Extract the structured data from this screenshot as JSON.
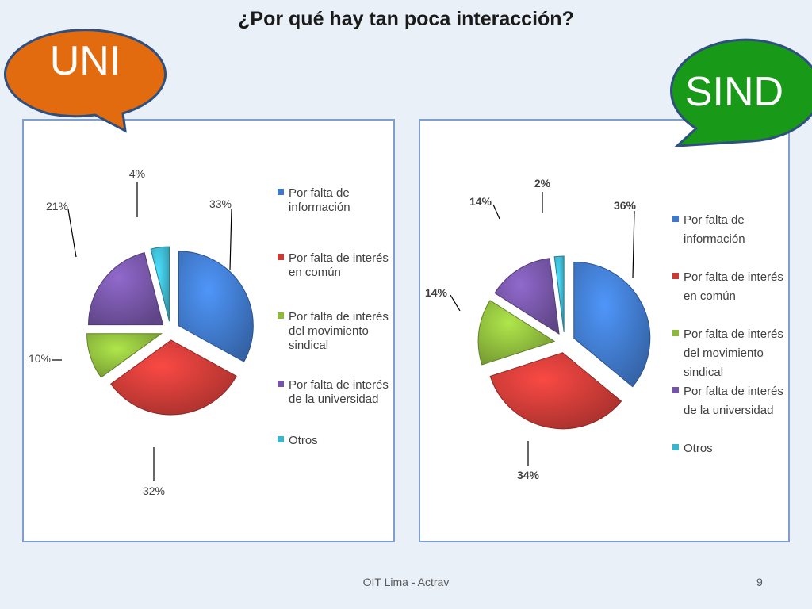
{
  "title": "¿Por qué hay tan poca interacción?",
  "footer": {
    "text": "OIT Lima - Actrav",
    "page": "9"
  },
  "colors": {
    "background": "#eaf0f8",
    "uni_bubble": "#e26b10",
    "sind_bubble": "#189a18",
    "bubble_border": "#2f4f7f",
    "series": [
      "#3f78c8",
      "#c83a36",
      "#8cb83c",
      "#7454a4",
      "#3cb4cc"
    ]
  },
  "chart_data": [
    {
      "type": "pie",
      "name": "UNI",
      "categories": [
        "Por falta de información",
        "Por falta de interés en común",
        "Por falta de interés del movimiento sindical",
        "Por falta de interés de la universidad",
        "Otros"
      ],
      "legend_lines": [
        [
          "Por falta de",
          "información"
        ],
        [
          "Por falta de interés",
          "en común"
        ],
        [
          "Por falta de interés",
          "del movimiento",
          "sindical"
        ],
        [
          "Por falta de interés",
          "de la universidad"
        ],
        [
          "Otros"
        ]
      ],
      "values": [
        33,
        32,
        10,
        21,
        4
      ],
      "value_labels": [
        "33%",
        "32%",
        "10%",
        "21%",
        "4%"
      ],
      "legend_position": "right",
      "exploded": true
    },
    {
      "type": "pie",
      "name": "SIND",
      "categories": [
        "Por falta de información",
        "Por falta de interés en común",
        "Por falta de interés del movimiento sindical",
        "Por falta de interés de la universidad",
        "Otros"
      ],
      "legend_lines": [
        [
          "Por falta de",
          "información"
        ],
        [
          "Por falta de interés",
          "en común"
        ],
        [
          "Por falta de interés",
          "del movimiento",
          "sindical"
        ],
        [
          "Por falta de interés",
          "de la universidad"
        ],
        [
          "Otros"
        ]
      ],
      "values": [
        36,
        34,
        14,
        14,
        2
      ],
      "value_labels": [
        "36%",
        "34%",
        "14%",
        "14%",
        "2%"
      ],
      "legend_position": "right",
      "exploded": true
    }
  ]
}
